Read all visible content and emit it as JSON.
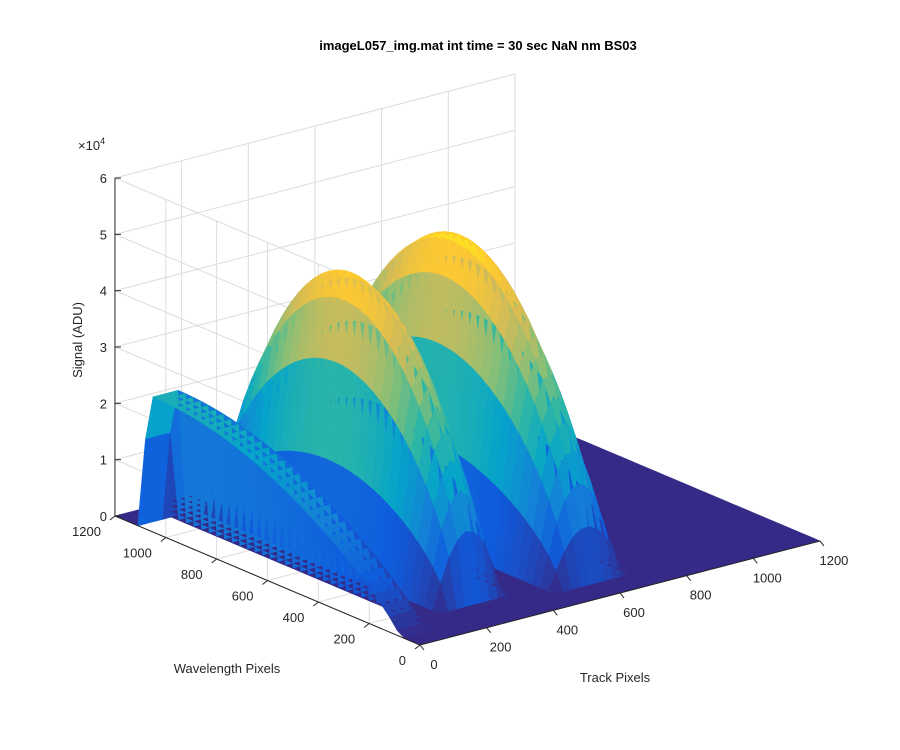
{
  "chart_data": {
    "type": "surface",
    "title": "imageL057_img.mat int time = 30 sec  NaN nm BS03",
    "xlabel": "Track Pixels",
    "ylabel": "Wavelength Pixels",
    "zlabel": "Signal (ADU)",
    "z_exponent_label": "×10",
    "z_exponent_power": "4",
    "xlim": [
      0,
      1200
    ],
    "ylim": [
      0,
      1200
    ],
    "zlim": [
      0,
      60000
    ],
    "x_ticks": [
      "0",
      "200",
      "400",
      "600",
      "800",
      "1000",
      "1200"
    ],
    "y_ticks": [
      "0",
      "200",
      "400",
      "600",
      "800",
      "1000",
      "1200"
    ],
    "z_ticks": [
      "0",
      "1",
      "2",
      "3",
      "4",
      "5",
      "6"
    ],
    "grid": true,
    "colormap": "parula",
    "colors": [
      "#352a87",
      "#0f5cdd",
      "#1481d6",
      "#06a4ca",
      "#2eb7a4",
      "#87bf77",
      "#d1bb59",
      "#fec832",
      "#f9fb0e"
    ],
    "peaks": [
      {
        "track_range": [
          0,
          80
        ],
        "wavelength_range": [
          80,
          1100
        ],
        "max_signal": 24000,
        "max_at_wavelength": 1080
      },
      {
        "track_range": [
          180,
          380
        ],
        "wavelength_range": [
          150,
          1100
        ],
        "max_signal": 50000,
        "max_at_track": 300
      },
      {
        "track_range": [
          480,
          700
        ],
        "wavelength_range": [
          100,
          1150
        ],
        "max_signal": 52000,
        "max_at_track": 580
      }
    ]
  }
}
